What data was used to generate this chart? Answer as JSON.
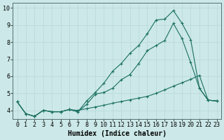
{
  "title": "",
  "xlabel": "Humidex (Indice chaleur)",
  "ylabel": "",
  "background_color": "#cce8e8",
  "grid_color_major": "#b8d8d8",
  "grid_color_minor": "#d4e8e8",
  "line_color": "#1a7060",
  "xlim": [
    -0.5,
    23.5
  ],
  "ylim": [
    3.5,
    10.3
  ],
  "yticks": [
    4,
    5,
    6,
    7,
    8,
    9,
    10
  ],
  "xticks": [
    0,
    1,
    2,
    3,
    4,
    5,
    6,
    7,
    8,
    9,
    10,
    11,
    12,
    13,
    14,
    15,
    16,
    17,
    18,
    19,
    20,
    21,
    22,
    23
  ],
  "series_high_x": [
    0,
    1,
    2,
    3,
    4,
    5,
    6,
    7,
    8,
    9,
    10,
    11,
    12,
    13,
    14,
    15,
    16,
    17,
    18,
    19,
    20,
    21,
    22,
    23
  ],
  "series_high_y": [
    4.5,
    3.8,
    3.65,
    4.0,
    3.92,
    3.92,
    4.05,
    3.92,
    4.55,
    5.05,
    5.6,
    6.3,
    6.75,
    7.35,
    7.8,
    8.5,
    9.3,
    9.35,
    9.85,
    9.1,
    8.15,
    5.3,
    4.6,
    4.55
  ],
  "series_mid_x": [
    0,
    1,
    2,
    3,
    4,
    5,
    6,
    7,
    8,
    9,
    10,
    11,
    12,
    13,
    14,
    15,
    16,
    17,
    18,
    19,
    20,
    21,
    22,
    23
  ],
  "series_mid_y": [
    4.5,
    3.8,
    3.65,
    4.0,
    3.92,
    3.92,
    4.05,
    3.92,
    4.35,
    4.95,
    5.05,
    5.3,
    5.8,
    6.1,
    6.75,
    7.5,
    7.8,
    8.1,
    9.1,
    8.2,
    6.8,
    5.3,
    4.6,
    4.55
  ],
  "series_low_x": [
    0,
    1,
    2,
    3,
    4,
    5,
    6,
    7,
    8,
    9,
    10,
    11,
    12,
    13,
    14,
    15,
    16,
    17,
    18,
    19,
    20,
    21,
    22,
    23
  ],
  "series_low_y": [
    4.5,
    3.8,
    3.65,
    4.0,
    3.92,
    3.92,
    4.05,
    4.0,
    4.1,
    4.2,
    4.3,
    4.42,
    4.52,
    4.62,
    4.72,
    4.82,
    5.0,
    5.2,
    5.42,
    5.62,
    5.82,
    6.05,
    4.6,
    4.55
  ],
  "marker": "+",
  "markersize": 3,
  "markeredgewidth": 0.8,
  "linewidth": 0.8,
  "xlabel_fontsize": 7,
  "tick_fontsize": 6,
  "figsize": [
    3.2,
    2.0
  ],
  "dpi": 100
}
